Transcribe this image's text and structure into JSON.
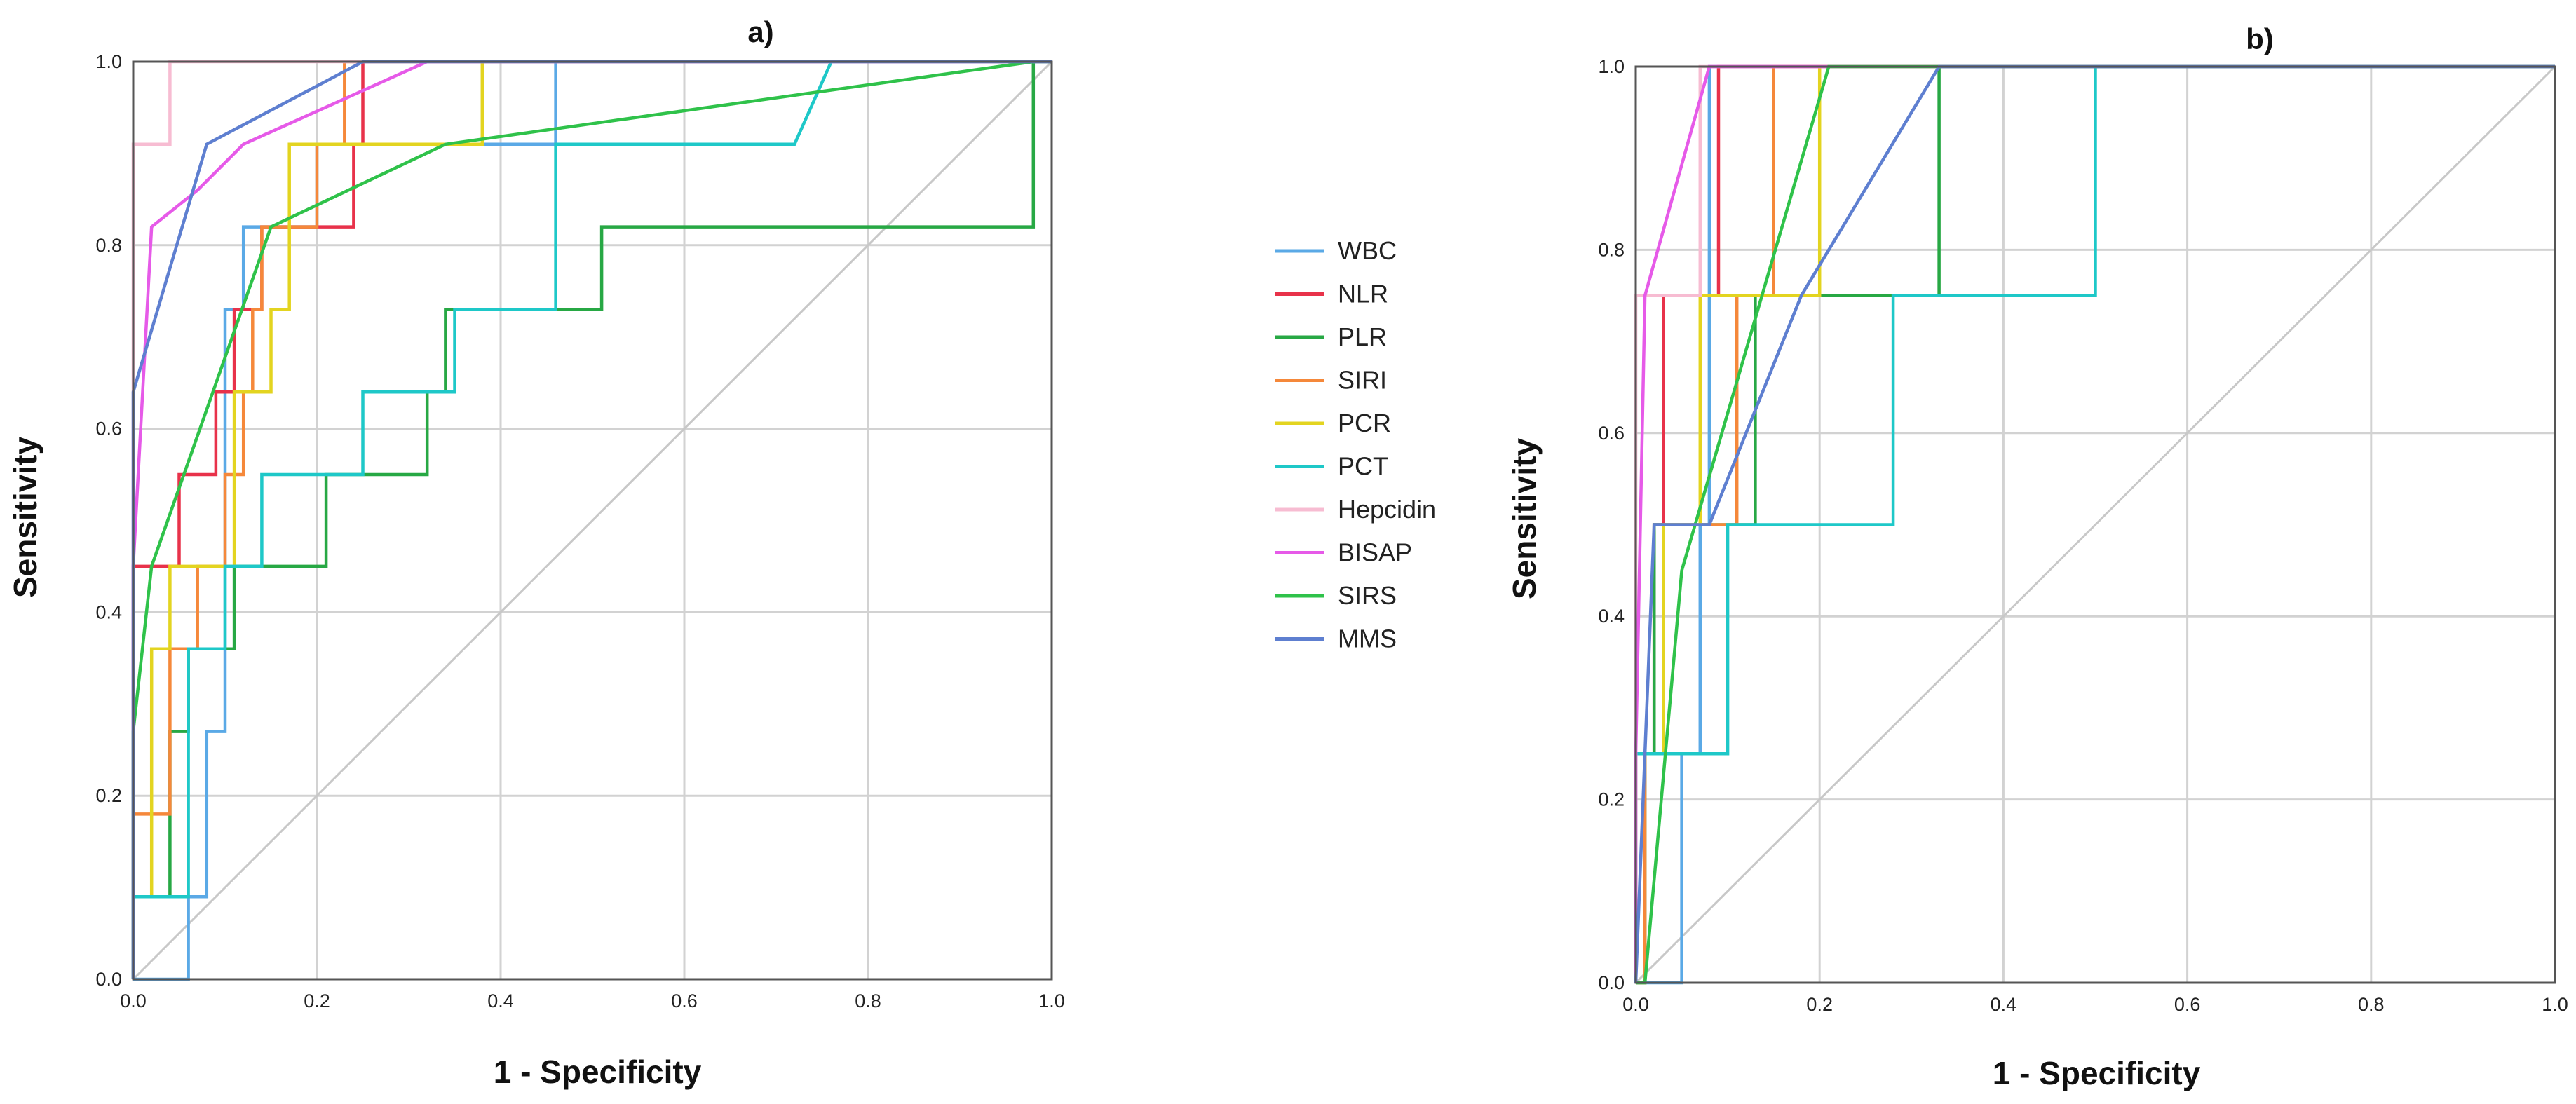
{
  "chart_data": [
    {
      "type": "line",
      "title": "a)",
      "xlabel": "1 - Specificity",
      "ylabel": "Sensitivity",
      "xlim": [
        0,
        1
      ],
      "ylim": [
        0,
        1
      ],
      "x_ticks": [
        "0.0",
        "0.2",
        "0.4",
        "0.6",
        "0.8",
        "1.0"
      ],
      "y_ticks": [
        "0.0",
        "0.2",
        "0.4",
        "0.6",
        "0.8",
        "1.0"
      ],
      "grid": true,
      "series": [
        {
          "name": "WBC",
          "color": "#5aa9e6",
          "points": [
            [
              0,
              0
            ],
            [
              0.06,
              0
            ],
            [
              0.06,
              0.09
            ],
            [
              0.08,
              0.09
            ],
            [
              0.08,
              0.27
            ],
            [
              0.1,
              0.27
            ],
            [
              0.1,
              0.73
            ],
            [
              0.12,
              0.73
            ],
            [
              0.12,
              0.82
            ],
            [
              0.15,
              0.82
            ],
            [
              0.2,
              0.82
            ],
            [
              0.2,
              0.91
            ],
            [
              0.46,
              0.91
            ],
            [
              0.46,
              1.0
            ],
            [
              1,
              1
            ]
          ]
        },
        {
          "name": "NLR",
          "color": "#e8324a",
          "points": [
            [
              0,
              0
            ],
            [
              0,
              0.45
            ],
            [
              0.05,
              0.45
            ],
            [
              0.05,
              0.55
            ],
            [
              0.09,
              0.55
            ],
            [
              0.09,
              0.64
            ],
            [
              0.11,
              0.64
            ],
            [
              0.11,
              0.73
            ],
            [
              0.14,
              0.73
            ],
            [
              0.14,
              0.82
            ],
            [
              0.24,
              0.82
            ],
            [
              0.24,
              0.91
            ],
            [
              0.25,
              0.91
            ],
            [
              0.25,
              1.0
            ],
            [
              1,
              1
            ]
          ]
        },
        {
          "name": "PLR",
          "color": "#27a844",
          "points": [
            [
              0,
              0
            ],
            [
              0,
              0.09
            ],
            [
              0.04,
              0.09
            ],
            [
              0.04,
              0.27
            ],
            [
              0.06,
              0.27
            ],
            [
              0.06,
              0.36
            ],
            [
              0.11,
              0.36
            ],
            [
              0.11,
              0.45
            ],
            [
              0.21,
              0.45
            ],
            [
              0.21,
              0.55
            ],
            [
              0.32,
              0.55
            ],
            [
              0.32,
              0.64
            ],
            [
              0.34,
              0.64
            ],
            [
              0.34,
              0.73
            ],
            [
              0.51,
              0.73
            ],
            [
              0.51,
              0.82
            ],
            [
              0.98,
              0.82
            ],
            [
              0.98,
              1.0
            ],
            [
              1,
              1
            ]
          ]
        },
        {
          "name": "SIRI",
          "color": "#f5883a",
          "points": [
            [
              0,
              0
            ],
            [
              0,
              0.18
            ],
            [
              0.04,
              0.18
            ],
            [
              0.04,
              0.36
            ],
            [
              0.07,
              0.36
            ],
            [
              0.07,
              0.45
            ],
            [
              0.1,
              0.45
            ],
            [
              0.1,
              0.55
            ],
            [
              0.12,
              0.55
            ],
            [
              0.12,
              0.64
            ],
            [
              0.13,
              0.64
            ],
            [
              0.13,
              0.73
            ],
            [
              0.14,
              0.73
            ],
            [
              0.14,
              0.82
            ],
            [
              0.2,
              0.82
            ],
            [
              0.2,
              0.91
            ],
            [
              0.23,
              0.91
            ],
            [
              0.23,
              1.0
            ],
            [
              1,
              1
            ]
          ]
        },
        {
          "name": "PCR",
          "color": "#e3d420",
          "points": [
            [
              0,
              0
            ],
            [
              0,
              0.09
            ],
            [
              0.02,
              0.09
            ],
            [
              0.02,
              0.36
            ],
            [
              0.04,
              0.36
            ],
            [
              0.04,
              0.45
            ],
            [
              0.11,
              0.45
            ],
            [
              0.11,
              0.64
            ],
            [
              0.15,
              0.64
            ],
            [
              0.15,
              0.73
            ],
            [
              0.17,
              0.73
            ],
            [
              0.17,
              0.91
            ],
            [
              0.38,
              0.91
            ],
            [
              0.38,
              1.0
            ],
            [
              1,
              1
            ]
          ]
        },
        {
          "name": "PCT",
          "color": "#1ec8c8",
          "points": [
            [
              0,
              0
            ],
            [
              0,
              0.09
            ],
            [
              0.06,
              0.09
            ],
            [
              0.06,
              0.36
            ],
            [
              0.1,
              0.36
            ],
            [
              0.1,
              0.45
            ],
            [
              0.14,
              0.45
            ],
            [
              0.14,
              0.55
            ],
            [
              0.25,
              0.55
            ],
            [
              0.25,
              0.64
            ],
            [
              0.35,
              0.64
            ],
            [
              0.35,
              0.73
            ],
            [
              0.46,
              0.73
            ],
            [
              0.46,
              0.91
            ],
            [
              0.72,
              0.91
            ],
            [
              0.76,
              1.0
            ],
            [
              1,
              1
            ]
          ]
        },
        {
          "name": "Hepcidin",
          "color": "#f7bcd2",
          "points": [
            [
              0,
              0
            ],
            [
              0,
              0.91
            ],
            [
              0.04,
              0.91
            ],
            [
              0.04,
              1.0
            ],
            [
              1,
              1
            ]
          ]
        },
        {
          "name": "BISAP",
          "color": "#e65ae8",
          "points": [
            [
              0,
              0
            ],
            [
              0,
              0.45
            ],
            [
              0.02,
              0.82
            ],
            [
              0.07,
              0.86
            ],
            [
              0.12,
              0.91
            ],
            [
              0.32,
              1.0
            ],
            [
              1,
              1
            ]
          ]
        },
        {
          "name": "SIRS",
          "color": "#2fc24a",
          "points": [
            [
              0,
              0
            ],
            [
              0,
              0.27
            ],
            [
              0.02,
              0.45
            ],
            [
              0.15,
              0.82
            ],
            [
              0.34,
              0.91
            ],
            [
              0.98,
              1.0
            ],
            [
              1,
              1
            ]
          ]
        },
        {
          "name": "MMS",
          "color": "#5e7fd0",
          "points": [
            [
              0,
              0
            ],
            [
              0,
              0.64
            ],
            [
              0.08,
              0.91
            ],
            [
              0.25,
              1.0
            ],
            [
              1,
              1
            ]
          ]
        }
      ]
    },
    {
      "type": "line",
      "title": "b)",
      "xlabel": "1 - Specificity",
      "ylabel": "Sensitivity",
      "xlim": [
        0,
        1
      ],
      "ylim": [
        0,
        1
      ],
      "x_ticks": [
        "0.0",
        "0.2",
        "0.4",
        "0.6",
        "0.8",
        "1.0"
      ],
      "y_ticks": [
        "0.0",
        "0.2",
        "0.4",
        "0.6",
        "0.8",
        "1.0"
      ],
      "grid": true,
      "series": [
        {
          "name": "WBC",
          "color": "#5aa9e6",
          "points": [
            [
              0,
              0
            ],
            [
              0.05,
              0
            ],
            [
              0.05,
              0.25
            ],
            [
              0.07,
              0.25
            ],
            [
              0.07,
              0.5
            ],
            [
              0.08,
              0.5
            ],
            [
              0.08,
              0.75
            ],
            [
              0.08,
              1.0
            ],
            [
              1,
              1
            ]
          ]
        },
        {
          "name": "NLR",
          "color": "#e8324a",
          "points": [
            [
              0,
              0
            ],
            [
              0,
              0.25
            ],
            [
              0.02,
              0.25
            ],
            [
              0.02,
              0.5
            ],
            [
              0.03,
              0.5
            ],
            [
              0.03,
              0.75
            ],
            [
              0.09,
              0.75
            ],
            [
              0.09,
              1.0
            ],
            [
              1,
              1
            ]
          ]
        },
        {
          "name": "PLR",
          "color": "#27a844",
          "points": [
            [
              0,
              0
            ],
            [
              0.01,
              0
            ],
            [
              0.01,
              0.25
            ],
            [
              0.02,
              0.25
            ],
            [
              0.02,
              0.5
            ],
            [
              0.13,
              0.5
            ],
            [
              0.13,
              0.75
            ],
            [
              0.33,
              0.75
            ],
            [
              0.33,
              1.0
            ],
            [
              1,
              1
            ]
          ]
        },
        {
          "name": "SIRI",
          "color": "#f5883a",
          "points": [
            [
              0,
              0
            ],
            [
              0.01,
              0
            ],
            [
              0.01,
              0.25
            ],
            [
              0.03,
              0.25
            ],
            [
              0.03,
              0.5
            ],
            [
              0.11,
              0.5
            ],
            [
              0.11,
              0.75
            ],
            [
              0.15,
              0.75
            ],
            [
              0.15,
              1.0
            ],
            [
              1,
              1
            ]
          ]
        },
        {
          "name": "PCR",
          "color": "#e3d420",
          "points": [
            [
              0,
              0
            ],
            [
              0,
              0.25
            ],
            [
              0.03,
              0.25
            ],
            [
              0.03,
              0.5
            ],
            [
              0.07,
              0.5
            ],
            [
              0.07,
              0.75
            ],
            [
              0.2,
              0.75
            ],
            [
              0.2,
              1.0
            ],
            [
              1,
              1
            ]
          ]
        },
        {
          "name": "PCT",
          "color": "#1ec8c8",
          "points": [
            [
              0,
              0
            ],
            [
              0,
              0.25
            ],
            [
              0.06,
              0.25
            ],
            [
              0.06,
              0.25
            ],
            [
              0.1,
              0.25
            ],
            [
              0.1,
              0.5
            ],
            [
              0.28,
              0.5
            ],
            [
              0.28,
              0.75
            ],
            [
              0.5,
              0.75
            ],
            [
              0.5,
              1.0
            ],
            [
              1,
              1
            ]
          ]
        },
        {
          "name": "Hepcidin",
          "color": "#f7bcd2",
          "points": [
            [
              0,
              0
            ],
            [
              0,
              0.75
            ],
            [
              0.07,
              0.75
            ],
            [
              0.07,
              1.0
            ],
            [
              1,
              1
            ]
          ]
        },
        {
          "name": "BISAP",
          "color": "#e65ae8",
          "points": [
            [
              0,
              0
            ],
            [
              0,
              0.25
            ],
            [
              0.01,
              0.75
            ],
            [
              0.08,
              1.0
            ],
            [
              1,
              1
            ]
          ]
        },
        {
          "name": "SIRS",
          "color": "#2fc24a",
          "points": [
            [
              0,
              0
            ],
            [
              0.01,
              0
            ],
            [
              0.05,
              0.45
            ],
            [
              0.21,
              1.0
            ],
            [
              1,
              1
            ]
          ]
        },
        {
          "name": "MMS",
          "color": "#5e7fd0",
          "points": [
            [
              0,
              0
            ],
            [
              0.02,
              0.5
            ],
            [
              0.08,
              0.5
            ],
            [
              0.18,
              0.75
            ],
            [
              0.33,
              1.0
            ],
            [
              1,
              1
            ]
          ]
        }
      ]
    }
  ],
  "legend": {
    "placement": "center",
    "entries": [
      {
        "label": "WBC",
        "color": "#5aa9e6"
      },
      {
        "label": "NLR",
        "color": "#e8324a"
      },
      {
        "label": "PLR",
        "color": "#27a844"
      },
      {
        "label": "SIRI",
        "color": "#f5883a"
      },
      {
        "label": "PCR",
        "color": "#e3d420"
      },
      {
        "label": "PCT",
        "color": "#1ec8c8"
      },
      {
        "label": "Hepcidin",
        "color": "#f7bcd2"
      },
      {
        "label": "BISAP",
        "color": "#e65ae8"
      },
      {
        "label": "SIRS",
        "color": "#2fc24a"
      },
      {
        "label": "MMS",
        "color": "#5e7fd0"
      }
    ]
  }
}
